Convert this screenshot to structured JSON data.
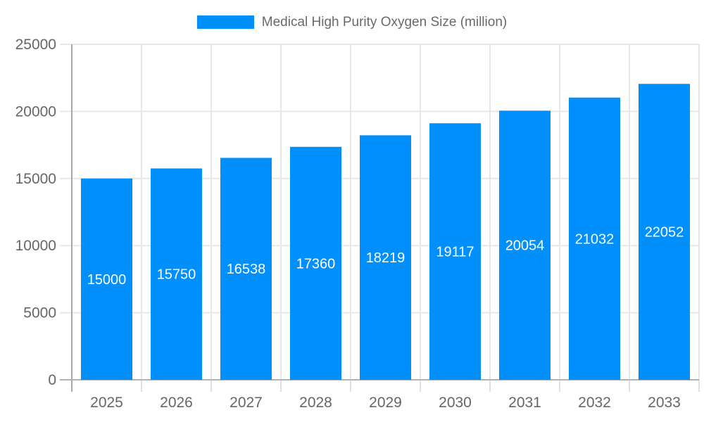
{
  "chart_data": {
    "type": "bar",
    "title": "Medical High Purity Oxygen Size (million)",
    "categories": [
      "2025",
      "2026",
      "2027",
      "2028",
      "2029",
      "2030",
      "2031",
      "2032",
      "2033"
    ],
    "series": [
      {
        "name": "Medical High Purity Oxygen Size (million)",
        "values": [
          15000,
          15750,
          16538,
          17360,
          18219,
          19117,
          20054,
          21032,
          22052
        ]
      }
    ],
    "data_labels": [
      "15000",
      "15750",
      "16538",
      "17360",
      "18219",
      "19117",
      "20054",
      "21032",
      "22052"
    ],
    "xlabel": "",
    "ylabel": "",
    "ylim": [
      0,
      25000
    ],
    "ytick_values": [
      0,
      5000,
      10000,
      15000,
      20000,
      25000
    ],
    "ytick_labels": [
      "0",
      "5000",
      "10000",
      "15000",
      "20000",
      "25000"
    ],
    "grid": true,
    "legend_position": "top"
  },
  "legend": {
    "label": "Medical High Purity Oxygen Size (million)"
  },
  "colors": {
    "bar": "#008FFB",
    "data_label": "#FFFFFF",
    "axis_label": "#666666",
    "gridline": "#E7E7E7",
    "x_tick": "#E0E0E0",
    "y_axis_line": "#A8A8A8",
    "x_axis_line": "#B1B1B1",
    "legend_text": "#696969",
    "background": "#FFFFFF"
  }
}
